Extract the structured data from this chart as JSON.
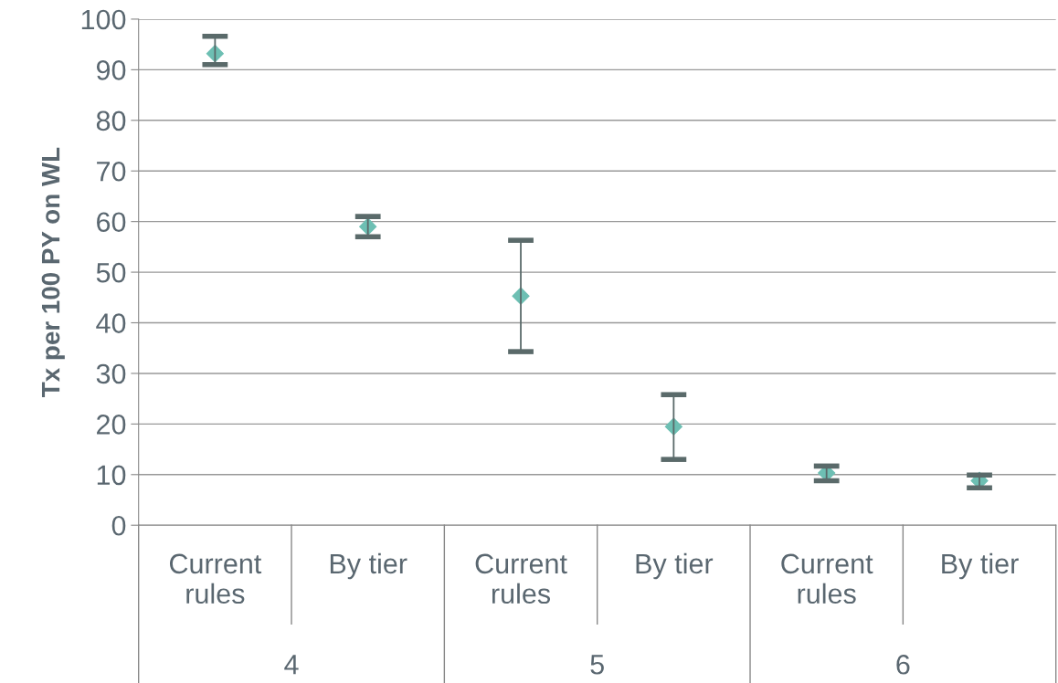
{
  "chart_data": {
    "type": "scatter",
    "ylabel": "Tx per 100 PY on WL",
    "categories": [
      "Current\nrules",
      "By tier",
      "Current\nrules",
      "By tier",
      "Current\nrules",
      "By tier"
    ],
    "series": [
      {
        "color": "#6dbfb3",
        "values": [
          93.2,
          59.0,
          45.3,
          19.5,
          10.3,
          8.8
        ],
        "errors": [
          [
            91.0,
            96.6
          ],
          [
            57.0,
            61.0
          ],
          [
            34.3,
            56.3
          ],
          [
            13.0,
            25.8
          ],
          [
            8.8,
            11.7
          ],
          [
            7.4,
            9.9
          ]
        ]
      }
    ],
    "annotations": [
      "4",
      "5",
      "6"
    ],
    "ylim": [
      0,
      100
    ],
    "yticks": [
      0,
      10,
      20,
      30,
      40,
      50,
      60,
      70,
      80,
      90,
      100
    ],
    "grid": "y",
    "marker": "diamond",
    "legend": false
  }
}
